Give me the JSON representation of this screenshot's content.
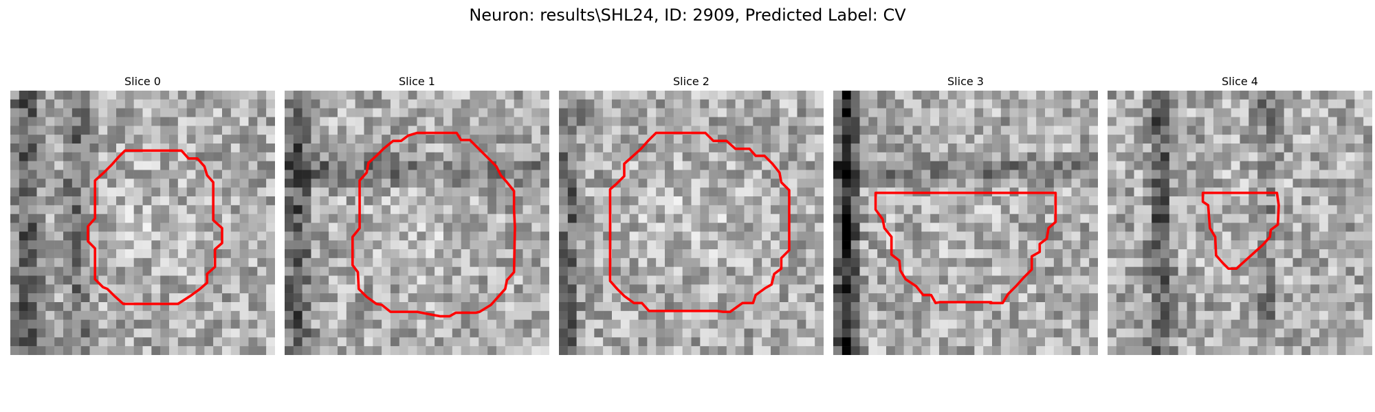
{
  "figure": {
    "title": "Neuron: results\\SHL24, ID: 2909, Predicted Label: CV",
    "contour_color": "#ff0000",
    "panels": [
      {
        "title": "Slice 0",
        "seed": 11,
        "bright_center": 0.45,
        "dark_bands": [
          {
            "axis": "x",
            "at": 0.06,
            "w": 0.08,
            "s": 0.35
          },
          {
            "axis": "x",
            "at": 0.25,
            "w": 0.08,
            "s": 0.25
          }
        ]
      },
      {
        "title": "Slice 1",
        "seed": 23,
        "bright_center": 0.5,
        "dark_bands": [
          {
            "axis": "x",
            "at": 0.05,
            "w": 0.08,
            "s": 0.35
          },
          {
            "axis": "y",
            "at": 0.3,
            "w": 0.08,
            "s": 0.25
          }
        ]
      },
      {
        "title": "Slice 2",
        "seed": 37,
        "bright_center": 0.55,
        "dark_bands": [
          {
            "axis": "x",
            "at": 0.04,
            "w": 0.06,
            "s": 0.3
          }
        ]
      },
      {
        "title": "Slice 3",
        "seed": 41,
        "bright_center": 0.2,
        "dark_bands": [
          {
            "axis": "x",
            "at": 0.05,
            "w": 0.07,
            "s": 0.55
          },
          {
            "axis": "y",
            "at": 0.3,
            "w": 0.08,
            "s": 0.2
          }
        ]
      },
      {
        "title": "Slice 4",
        "seed": 53,
        "bright_center": 0.25,
        "dark_bands": [
          {
            "axis": "x",
            "at": 0.2,
            "w": 0.06,
            "s": 0.4
          },
          {
            "axis": "x",
            "at": 0.6,
            "w": 0.06,
            "s": 0.2
          }
        ]
      }
    ]
  }
}
